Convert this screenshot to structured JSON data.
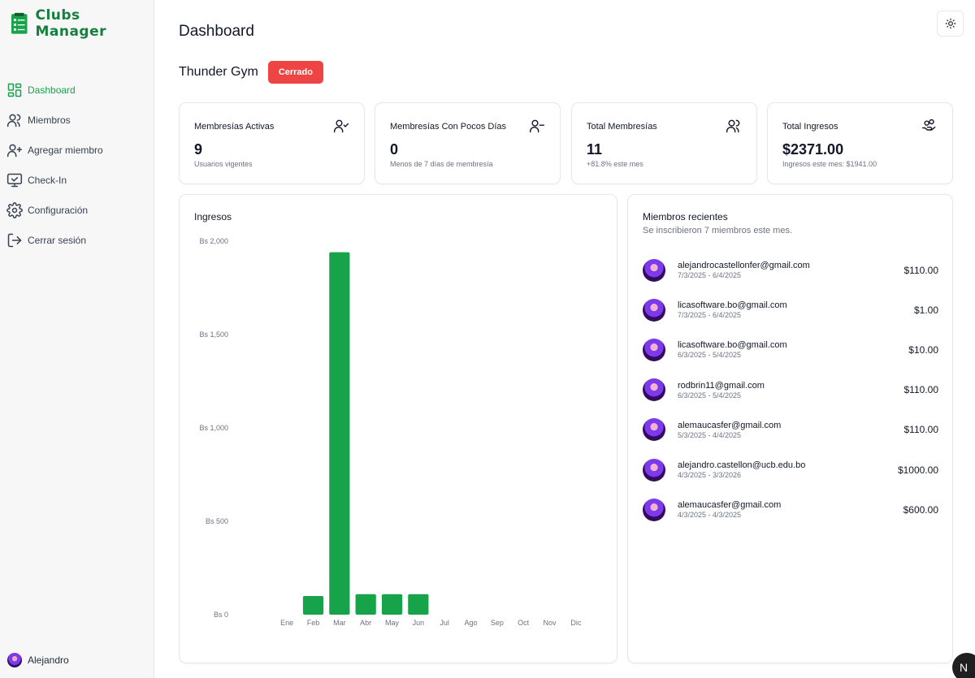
{
  "app": {
    "name": "Clubs Manager"
  },
  "nav": {
    "items": [
      {
        "label": "Dashboard",
        "icon": "dashboard-icon",
        "active": true
      },
      {
        "label": "Miembros",
        "icon": "users-icon"
      },
      {
        "label": "Agregar miembro",
        "icon": "user-plus-icon"
      },
      {
        "label": "Check-In",
        "icon": "monitor-check-icon"
      },
      {
        "label": "Configuración",
        "icon": "gear-icon"
      },
      {
        "label": "Cerrar sesión",
        "icon": "logout-icon"
      }
    ]
  },
  "user": {
    "name": "Alejandro"
  },
  "header": {
    "title": "Dashboard",
    "theme_icon": "sun-icon"
  },
  "gym": {
    "name": "Thunder Gym",
    "status": "Cerrado",
    "status_color": "#ef4444"
  },
  "stats": [
    {
      "label": "Membresías Activas",
      "value": "9",
      "sub": "Usuarios vigentes",
      "icon": "user-check-icon"
    },
    {
      "label": "Membresías Con Pocos Días",
      "value": "0",
      "sub": "Menos de 7 días de membresía",
      "icon": "user-minus-icon"
    },
    {
      "label": "Total Membresías",
      "value": "11",
      "sub": "+81.8% este mes",
      "icon": "users-icon"
    },
    {
      "label": "Total Ingresos",
      "value": "$2371.00",
      "sub": "Ingresos este mes: $1941.00",
      "icon": "hand-coins-icon"
    }
  ],
  "chart_data": {
    "type": "bar",
    "title": "Ingresos",
    "categories": [
      "Ene",
      "Feb",
      "Mar",
      "Abr",
      "May",
      "Jun",
      "Jul",
      "Ago",
      "Sep",
      "Oct",
      "Nov",
      "Dic"
    ],
    "values": [
      0,
      100,
      1941,
      110,
      110,
      110,
      0,
      0,
      0,
      0,
      0,
      0
    ],
    "yticks": [
      0,
      500,
      1000,
      1500,
      2000
    ],
    "ytick_labels": [
      "Bs 0",
      "Bs 500",
      "Bs 1,000",
      "Bs 1,500",
      "Bs 2,000"
    ],
    "ylim": [
      0,
      2000
    ],
    "bar_color": "#16a34a",
    "xlabel": "",
    "ylabel": ""
  },
  "recent": {
    "title": "Miembros recientes",
    "subtitle": "Se inscribieron 7 miembros este mes.",
    "items": [
      {
        "email": "alejandrocastellonfer@gmail.com",
        "dates": "7/3/2025 - 6/4/2025",
        "amount": "$110.00"
      },
      {
        "email": "licasoftware.bo@gmail.com",
        "dates": "7/3/2025 - 6/4/2025",
        "amount": "$1.00"
      },
      {
        "email": "licasoftware.bo@gmail.com",
        "dates": "6/3/2025 - 5/4/2025",
        "amount": "$10.00"
      },
      {
        "email": "rodbrin11@gmail.com",
        "dates": "6/3/2025 - 5/4/2025",
        "amount": "$110.00"
      },
      {
        "email": "alemaucasfer@gmail.com",
        "dates": "5/3/2025 - 4/4/2025",
        "amount": "$110.00"
      },
      {
        "email": "alejandro.castellon@ucb.edu.bo",
        "dates": "4/3/2025 - 3/3/2026",
        "amount": "$1000.00"
      },
      {
        "email": "alemaucasfer@gmail.com",
        "dates": "4/3/2025 - 4/3/2025",
        "amount": "$600.00"
      }
    ]
  },
  "badge": {
    "letter": "N"
  }
}
